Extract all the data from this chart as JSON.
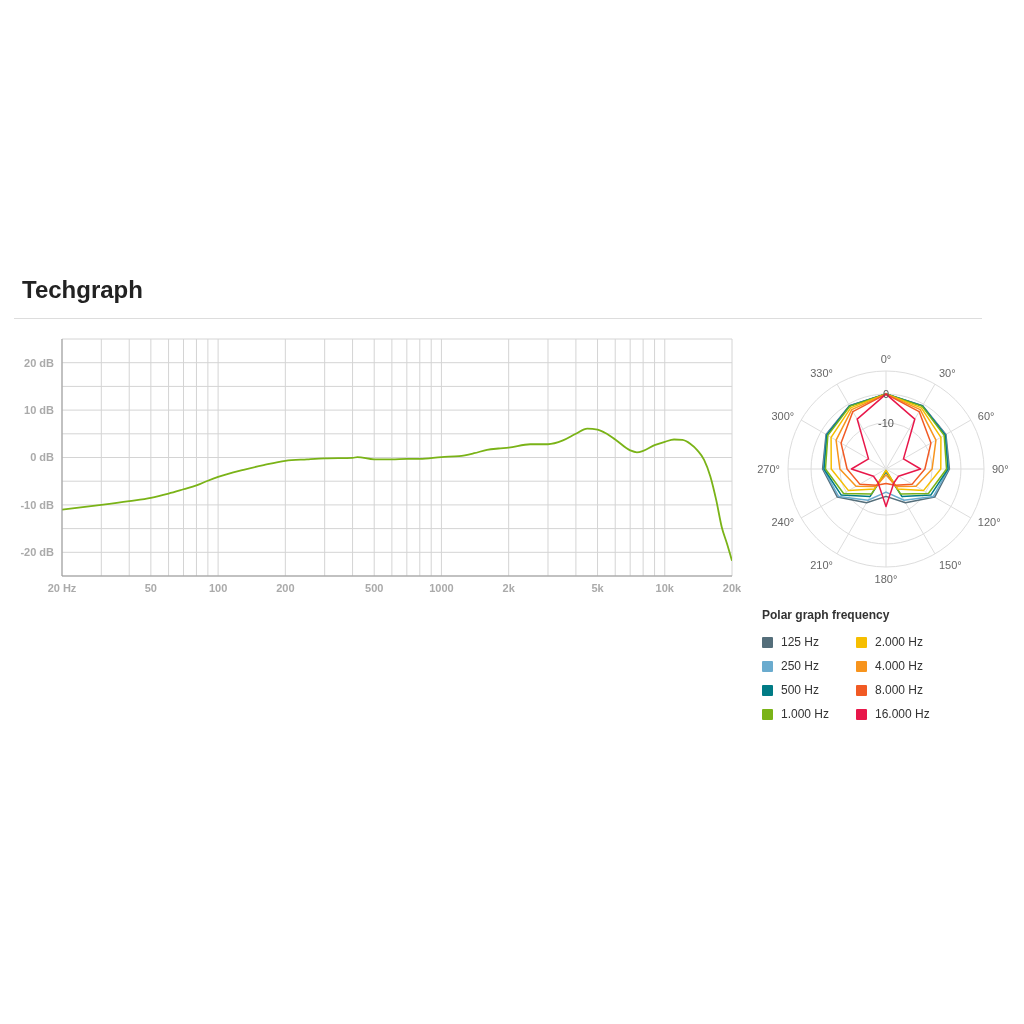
{
  "chart_data": [
    {
      "type": "line",
      "title": "Techgraph",
      "log": "x",
      "grid": true,
      "marker": "none",
      "line_style": "solid",
      "xlim": [
        20,
        20000
      ],
      "ylim": [
        -25,
        25
      ],
      "xticks": [
        {
          "value": 20,
          "label": "20 Hz"
        },
        {
          "value": 30,
          "label": null
        },
        {
          "value": 40,
          "label": null
        },
        50,
        {
          "value": 60,
          "label": null
        },
        {
          "value": 70,
          "label": null
        },
        {
          "value": 80,
          "label": null
        },
        {
          "value": 90,
          "label": null
        },
        100,
        200,
        {
          "value": 300,
          "label": null
        },
        {
          "value": 400,
          "label": null
        },
        500,
        {
          "value": 600,
          "label": null
        },
        {
          "value": 700,
          "label": null
        },
        {
          "value": 800,
          "label": null
        },
        {
          "value": 900,
          "label": null
        },
        1000,
        {
          "value": 2000,
          "label": "2k"
        },
        {
          "value": 3000,
          "label": null
        },
        {
          "value": 4000,
          "label": null
        },
        {
          "value": 5000,
          "label": "5k"
        },
        {
          "value": 6000,
          "label": null
        },
        {
          "value": 7000,
          "label": null
        },
        {
          "value": 8000,
          "label": null
        },
        {
          "value": 9000,
          "label": null
        },
        {
          "value": 10000,
          "label": "10k"
        },
        {
          "value": 20000,
          "label": "20k"
        }
      ],
      "yticks": [
        {
          "value": -25,
          "label": null
        },
        {
          "value": -20,
          "label": "-20 dB"
        },
        {
          "value": -15,
          "label": null
        },
        {
          "value": -10,
          "label": "-10 dB"
        },
        {
          "value": -5,
          "label": null
        },
        {
          "value": 0,
          "label": "0 dB"
        },
        {
          "value": 5,
          "label": null
        },
        {
          "value": 10,
          "label": "10 dB"
        },
        {
          "value": 15,
          "label": null
        },
        {
          "value": 20,
          "label": "20 dB"
        },
        {
          "value": 25,
          "label": null
        }
      ],
      "x": [
        20,
        30,
        40,
        50,
        60,
        70,
        80,
        90,
        100,
        130,
        160,
        200,
        250,
        300,
        400,
        420,
        500,
        600,
        700,
        800,
        1000,
        1200,
        1400,
        1600,
        1800,
        2000,
        2500,
        3000,
        3500,
        4000,
        4500,
        5000,
        5500,
        6000,
        7000,
        7500,
        8000,
        9000,
        10000,
        11000,
        12000,
        13000,
        14000,
        15000,
        16000,
        17000,
        18000,
        19000,
        20000
      ],
      "series": [
        {
          "color": "#7ab317",
          "values": [
            -11,
            -10,
            -9.2,
            -8.5,
            -7.6,
            -6.7,
            -5.9,
            -4.9,
            -4.1,
            -2.6,
            -1.6,
            -0.7,
            -0.4,
            -0.2,
            -0.1,
            0.1,
            -0.4,
            -0.4,
            -0.3,
            -0.3,
            0.1,
            0.3,
            0.9,
            1.6,
            1.9,
            2.1,
            2.8,
            2.8,
            3.6,
            5,
            6.1,
            5.9,
            5,
            3.8,
            1.5,
            1.1,
            1.4,
            2.6,
            3.3,
            3.8,
            3.7,
            2.9,
            1.5,
            -0.5,
            -4,
            -9,
            -14.7,
            -18.2,
            -21.8
          ]
        }
      ]
    },
    {
      "type": "radar",
      "legend_title": "Polar graph frequency",
      "legend": "bottom",
      "grid": true,
      "ylim": [
        -26,
        8
      ],
      "yticks": [
        -10,
        0
      ],
      "categories": [
        "0°",
        "30°",
        "60°",
        "90°",
        "120°",
        "150°",
        "180°",
        "210°",
        "240°",
        "270°",
        "300°",
        "330°"
      ],
      "series": [
        {
          "name": "125 Hz",
          "color": "#546e7a",
          "values": [
            0,
            -0.6,
            -2,
            -4,
            -6.5,
            -12.5,
            -16.5,
            -12.5,
            -6.5,
            -4,
            -2,
            -0.6
          ]
        },
        {
          "name": "250 Hz",
          "color": "#6aabce",
          "values": [
            0,
            -0.7,
            -2.2,
            -4.3,
            -7,
            -13.5,
            -18,
            -13.5,
            -7,
            -4.3,
            -2.2,
            -0.7
          ]
        },
        {
          "name": "500 Hz",
          "color": "#007b85",
          "values": [
            0,
            -0.7,
            -2.3,
            -4.5,
            -8,
            -15,
            -25,
            -15,
            -8,
            -4.5,
            -2.3,
            -0.7
          ]
        },
        {
          "name": "1.000 Hz",
          "color": "#7ab317",
          "values": [
            0,
            -0.9,
            -2.7,
            -5,
            -9,
            -16,
            -25.5,
            -16,
            -9,
            -5,
            -2.7,
            -0.9
          ]
        },
        {
          "name": "2.000 Hz",
          "color": "#f6be00",
          "values": [
            0,
            -1.5,
            -4,
            -7,
            -11,
            -18,
            -25.5,
            -18,
            -11,
            -7,
            -4,
            -1.5
          ]
        },
        {
          "name": "4.000 Hz",
          "color": "#f7941d",
          "values": [
            0,
            -2.2,
            -6,
            -10,
            -14,
            -19,
            -24,
            -19,
            -14,
            -10,
            -6,
            -2.2
          ]
        },
        {
          "name": "8.000 Hz",
          "color": "#f15a24",
          "values": [
            0,
            -3,
            -8,
            -12.5,
            -15.5,
            -19.5,
            -21,
            -19.5,
            -15.5,
            -12.5,
            -8,
            -3
          ]
        },
        {
          "name": "16.000 Hz",
          "color": "#e8174a",
          "values": [
            0,
            -6,
            -19,
            -14,
            -21,
            -20.5,
            -13,
            -20.5,
            -21,
            -14,
            -19,
            -6
          ]
        }
      ]
    }
  ]
}
